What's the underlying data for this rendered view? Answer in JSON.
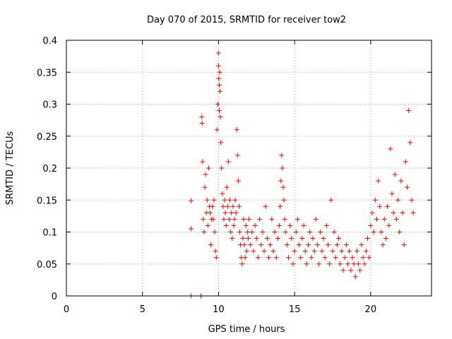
{
  "chart_data": {
    "type": "scatter",
    "title": "Day 070 of 2015, SRMTID for receiver tow2",
    "xlabel": "GPS time / hours",
    "ylabel": "SRMTID / TECUs",
    "xlim": [
      0,
      24
    ],
    "ylim": [
      0,
      0.4
    ],
    "xticks": [
      0,
      5,
      10,
      15,
      20
    ],
    "yticks": [
      0,
      0.05,
      0.1,
      0.15,
      0.2,
      0.25,
      0.3,
      0.35,
      0.4
    ],
    "xtick_labels": [
      "0",
      "5",
      "10",
      "15",
      "20"
    ],
    "ytick_labels": [
      "0",
      "0.05",
      "0.1",
      "0.15",
      "0.2",
      "0.25",
      "0.3",
      "0.35",
      "0.4"
    ],
    "grid": true,
    "marker": "+",
    "color": "#ff0000",
    "series": [
      {
        "name": "SRMTID",
        "x": [
          8.2,
          8.2,
          8.2,
          8.85,
          8.85,
          8.9,
          8.92,
          8.95,
          9.0,
          9.05,
          9.1,
          9.15,
          9.2,
          9.25,
          9.3,
          9.35,
          9.4,
          9.45,
          9.5,
          9.55,
          9.6,
          9.65,
          9.7,
          9.75,
          9.8,
          9.85,
          9.9,
          9.95,
          10.0,
          10.0,
          10.02,
          10.05,
          10.05,
          10.08,
          10.1,
          10.12,
          10.15,
          10.2,
          10.25,
          10.3,
          10.35,
          10.4,
          10.45,
          10.5,
          10.55,
          10.6,
          10.65,
          10.7,
          10.75,
          10.8,
          10.85,
          10.9,
          10.95,
          11.0,
          11.05,
          11.1,
          11.15,
          11.2,
          11.25,
          11.3,
          11.35,
          11.4,
          11.45,
          11.5,
          11.55,
          11.6,
          11.65,
          11.7,
          11.75,
          11.8,
          11.85,
          11.9,
          11.95,
          12.0,
          12.1,
          12.2,
          12.3,
          12.4,
          12.5,
          12.6,
          12.7,
          12.8,
          12.9,
          13.0,
          13.1,
          13.2,
          13.3,
          13.4,
          13.5,
          13.6,
          13.7,
          13.8,
          13.9,
          14.0,
          14.05,
          14.1,
          14.15,
          14.2,
          14.25,
          14.3,
          14.35,
          14.4,
          14.5,
          14.6,
          14.7,
          14.8,
          14.9,
          15.0,
          15.1,
          15.2,
          15.3,
          15.4,
          15.5,
          15.6,
          15.7,
          15.8,
          15.9,
          16.0,
          16.1,
          16.2,
          16.3,
          16.4,
          16.5,
          16.6,
          16.7,
          16.8,
          16.9,
          17.0,
          17.1,
          17.2,
          17.3,
          17.4,
          17.5,
          17.6,
          17.7,
          17.8,
          17.9,
          18.0,
          18.1,
          18.2,
          18.3,
          18.4,
          18.5,
          18.6,
          18.7,
          18.8,
          18.9,
          19.0,
          19.1,
          19.2,
          19.3,
          19.4,
          19.5,
          19.6,
          19.7,
          19.8,
          19.9,
          20.0,
          20.1,
          20.2,
          20.3,
          20.4,
          20.5,
          20.6,
          20.7,
          20.8,
          20.9,
          21.0,
          21.1,
          21.2,
          21.3,
          21.4,
          21.5,
          21.6,
          21.7,
          21.8,
          21.9,
          22.0,
          22.1,
          22.2,
          22.3,
          22.4,
          22.5,
          22.6,
          22.7,
          22.8
        ],
        "y": [
          0.0,
          0.105,
          0.149,
          0.0,
          0.0,
          0.28,
          0.27,
          0.21,
          0.12,
          0.1,
          0.17,
          0.19,
          0.13,
          0.15,
          0.11,
          0.2,
          0.14,
          0.13,
          0.08,
          0.12,
          0.14,
          0.12,
          0.15,
          0.1,
          0.07,
          0.06,
          0.26,
          0.3,
          0.38,
          0.36,
          0.34,
          0.33,
          0.29,
          0.35,
          0.32,
          0.28,
          0.24,
          0.2,
          0.16,
          0.14,
          0.12,
          0.15,
          0.13,
          0.11,
          0.17,
          0.14,
          0.21,
          0.12,
          0.15,
          0.1,
          0.13,
          0.09,
          0.14,
          0.11,
          0.12,
          0.15,
          0.13,
          0.26,
          0.22,
          0.18,
          0.14,
          0.1,
          0.08,
          0.06,
          0.05,
          0.09,
          0.12,
          0.08,
          0.06,
          0.11,
          0.07,
          0.1,
          0.09,
          0.12,
          0.08,
          0.1,
          0.07,
          0.11,
          0.09,
          0.06,
          0.12,
          0.08,
          0.1,
          0.07,
          0.14,
          0.09,
          0.06,
          0.08,
          0.12,
          0.07,
          0.1,
          0.06,
          0.09,
          0.11,
          0.14,
          0.18,
          0.22,
          0.2,
          0.17,
          0.15,
          0.12,
          0.1,
          0.08,
          0.06,
          0.11,
          0.09,
          0.05,
          0.07,
          0.1,
          0.12,
          0.08,
          0.06,
          0.09,
          0.11,
          0.07,
          0.05,
          0.08,
          0.1,
          0.06,
          0.09,
          0.07,
          0.12,
          0.08,
          0.05,
          0.1,
          0.07,
          0.09,
          0.06,
          0.11,
          0.08,
          0.05,
          0.15,
          0.07,
          0.1,
          0.06,
          0.08,
          0.09,
          0.05,
          0.07,
          0.04,
          0.06,
          0.08,
          0.05,
          0.07,
          0.04,
          0.06,
          0.05,
          0.03,
          0.07,
          0.05,
          0.04,
          0.08,
          0.06,
          0.05,
          0.07,
          0.09,
          0.06,
          0.11,
          0.13,
          0.1,
          0.15,
          0.12,
          0.18,
          0.14,
          0.1,
          0.08,
          0.12,
          0.09,
          0.14,
          0.11,
          0.23,
          0.16,
          0.13,
          0.19,
          0.12,
          0.15,
          0.1,
          0.18,
          0.13,
          0.08,
          0.21,
          0.17,
          0.29,
          0.24,
          0.15,
          0.13
        ]
      }
    ]
  }
}
